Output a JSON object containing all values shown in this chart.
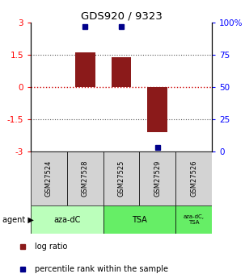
{
  "title": "GDS920 / 9323",
  "samples": [
    "GSM27524",
    "GSM27528",
    "GSM27525",
    "GSM27529",
    "GSM27526"
  ],
  "log_ratios": [
    0,
    1.6,
    1.4,
    -2.1,
    0
  ],
  "percentile_ranks": [
    null,
    97,
    97,
    3,
    null
  ],
  "ylim": [
    -3,
    3
  ],
  "yticks_left": [
    -3,
    -1.5,
    0,
    1.5,
    3
  ],
  "yticks_right_pct": [
    0,
    25,
    50,
    75,
    100
  ],
  "bar_color": "#8B1A1A",
  "dot_color": "#00008B",
  "hline_zero_color": "#CC0000",
  "hline_other_color": "#555555",
  "sample_bg_color": "#D3D3D3",
  "group_defs": [
    {
      "label": "aza-dC",
      "start": 0,
      "end": 1,
      "color": "#BBFFBB"
    },
    {
      "label": "TSA",
      "start": 2,
      "end": 3,
      "color": "#66EE66"
    },
    {
      "label": "aza-dC,\nTSA",
      "start": 4,
      "end": 4,
      "color": "#66EE66"
    }
  ],
  "legend_bar_label": "log ratio",
  "legend_dot_label": "percentile rank within the sample"
}
